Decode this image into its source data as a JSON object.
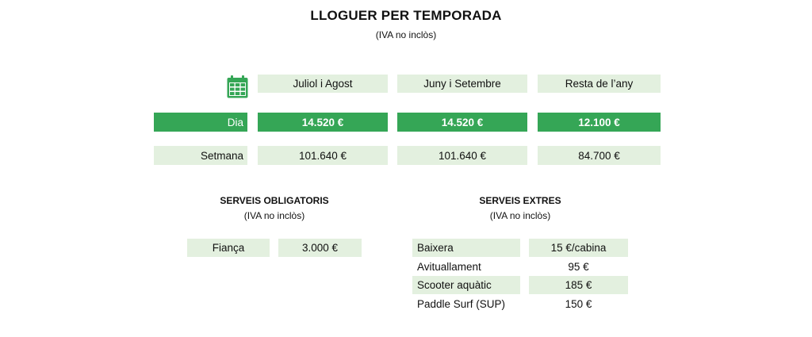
{
  "header": {
    "title": "LLOGUER PER TEMPORADA",
    "subtitle": "(IVA no inclòs)"
  },
  "seasons": [
    "Juliol i Agost",
    "Juny i Setembre",
    "Resta de l’any"
  ],
  "rates": [
    {
      "label": "Dia",
      "values": [
        "14.520 €",
        "14.520 €",
        "12.100 €"
      ]
    },
    {
      "label": "Setmana",
      "values": [
        "101.640 €",
        "101.640 €",
        "84.700 €"
      ]
    }
  ],
  "obligatoris": {
    "title": "SERVEIS OBLIGATORIS",
    "subtitle": "(IVA no inclòs)",
    "items": [
      {
        "label": "Fiança",
        "value": "3.000 €"
      }
    ]
  },
  "extres": {
    "title": "SERVEIS EXTRES",
    "subtitle": "(IVA no inclòs)",
    "items": [
      {
        "label": "Baixera",
        "value": "15 €/cabina"
      },
      {
        "label": "Avituallament",
        "value": "95 €"
      },
      {
        "label": "Scooter aquàtic",
        "value": "185 €"
      },
      {
        "label": "Paddle Surf (SUP)",
        "value": "150 €"
      }
    ]
  },
  "colors": {
    "accent": "#35a656",
    "light": "#e3f0df"
  },
  "icons": {
    "season_header": "calendar-icon"
  }
}
